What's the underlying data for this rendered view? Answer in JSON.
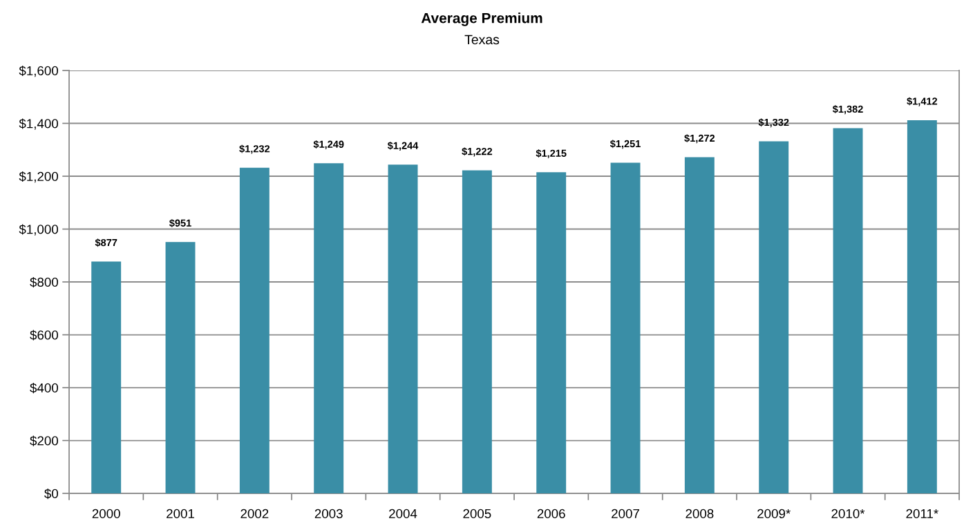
{
  "chart_data": {
    "type": "bar",
    "title": "Average Premium",
    "subtitle": "Texas",
    "categories": [
      "2000",
      "2001",
      "2002",
      "2003",
      "2004",
      "2005",
      "2006",
      "2007",
      "2008",
      "2009*",
      "2010*",
      "2011*"
    ],
    "values": [
      877,
      951,
      1232,
      1249,
      1244,
      1222,
      1215,
      1251,
      1272,
      1332,
      1382,
      1412
    ],
    "value_labels": [
      "$877",
      "$951",
      "$1,232",
      "$1,249",
      "$1,244",
      "$1,222",
      "$1,215",
      "$1,251",
      "$1,272",
      "$1,332",
      "$1,382",
      "$1,412"
    ],
    "color": "#3a8ea6",
    "ylim": [
      0,
      1600
    ],
    "yticks": [
      {
        "value": 0,
        "label": "$0"
      },
      {
        "value": 200,
        "label": "$200"
      },
      {
        "value": 400,
        "label": "$400"
      },
      {
        "value": 600,
        "label": "$600"
      },
      {
        "value": 800,
        "label": "$800"
      },
      {
        "value": 1000,
        "label": "$1,000"
      },
      {
        "value": 1200,
        "label": "$1,200"
      },
      {
        "value": 1400,
        "label": "$1,400"
      },
      {
        "value": 1600,
        "label": "$1,600"
      }
    ],
    "grid": "y",
    "legend": false
  }
}
